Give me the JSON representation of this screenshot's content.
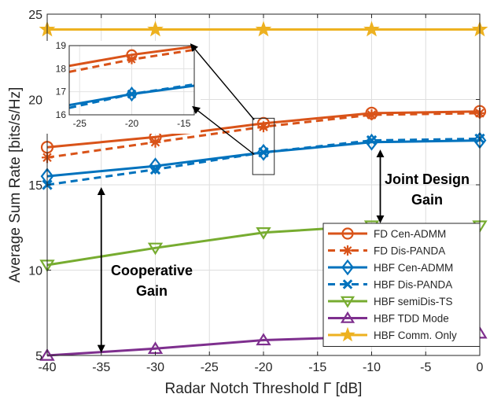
{
  "chart_data": {
    "type": "line",
    "xlabel": "Radar Notch Threshold Γ [dB]",
    "ylabel": "Average Sum Rate [bits/s/Hz]",
    "xlim": [
      -40,
      0
    ],
    "ylim": [
      5,
      25
    ],
    "xticks": [
      -40,
      -35,
      -30,
      -25,
      -20,
      -15,
      -10,
      -5,
      0
    ],
    "yticks": [
      5,
      10,
      15,
      20,
      25
    ],
    "grid": true,
    "legend_position": "bottom-right",
    "x": [
      -40,
      -30,
      -20,
      -10,
      0
    ],
    "series": [
      {
        "name": "FD Cen-ADMM",
        "values": [
          17.2,
          17.8,
          18.6,
          19.2,
          19.3
        ],
        "color": "#D95319",
        "style": "solid",
        "marker": "circle"
      },
      {
        "name": "FD Dis-PANDA",
        "values": [
          16.6,
          17.5,
          18.4,
          19.1,
          19.2
        ],
        "color": "#D95319",
        "style": "dashed",
        "marker": "asterisk"
      },
      {
        "name": "HBF Cen-ADMM",
        "values": [
          15.5,
          16.1,
          16.9,
          17.5,
          17.6
        ],
        "color": "#0072BD",
        "style": "solid",
        "marker": "diamond"
      },
      {
        "name": "HBF Dis-PANDA",
        "values": [
          15.0,
          15.9,
          16.9,
          17.6,
          17.7
        ],
        "color": "#0072BD",
        "style": "dashed",
        "marker": "x"
      },
      {
        "name": "HBF semiDis-TS",
        "values": [
          10.3,
          11.3,
          12.2,
          12.6,
          12.6
        ],
        "color": "#77AC30",
        "style": "solid",
        "marker": "triangle-down"
      },
      {
        "name": "HBF TDD Mode",
        "values": [
          5.0,
          5.4,
          5.9,
          6.1,
          6.3
        ],
        "color": "#7E2F8E",
        "style": "solid",
        "marker": "triangle-up"
      },
      {
        "name": "HBF Comm. Only",
        "values": [
          24.1,
          24.1,
          24.1,
          24.1,
          24.1
        ],
        "color": "#EDB120",
        "style": "solid",
        "marker": "star"
      }
    ],
    "annotations": [
      {
        "text_lines": [
          "Joint Design",
          "Gain"
        ],
        "x_from": -10,
        "y_from": 17.3,
        "y_to": 12.7
      },
      {
        "text_lines": [
          "Cooperative",
          "Gain"
        ],
        "x_from": -35,
        "y_from": 15.0,
        "y_to": 5.2
      }
    ],
    "inset": {
      "xlim": [
        -26,
        -14
      ],
      "ylim": [
        16,
        19
      ],
      "xticks": [
        -25,
        -20,
        -15
      ],
      "yticks": [
        16,
        17,
        18,
        19
      ],
      "zoom_region_x": [
        -21,
        -19
      ],
      "zoom_region_y": [
        15.6,
        18.9
      ]
    }
  }
}
